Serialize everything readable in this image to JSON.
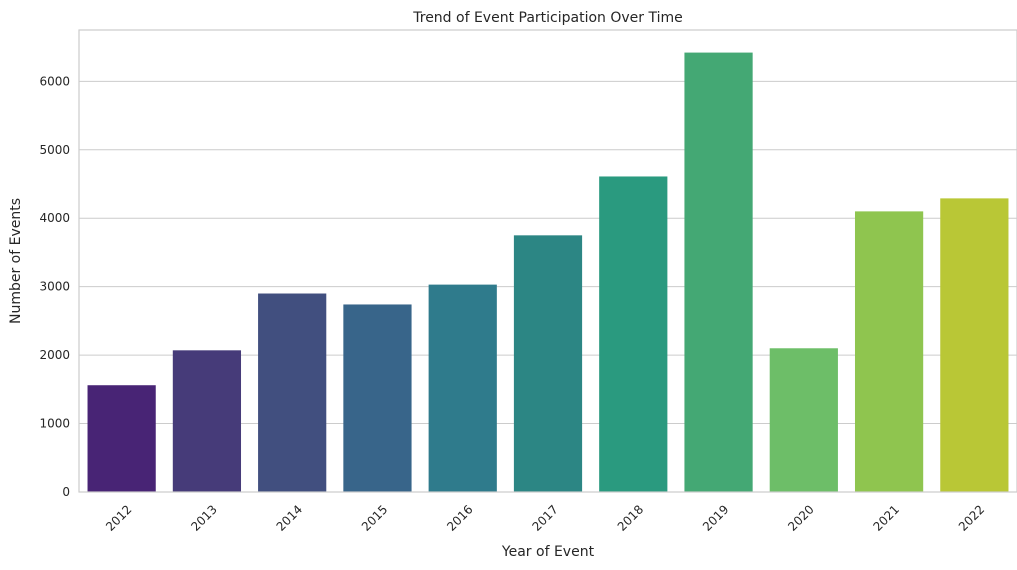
{
  "chart_data": {
    "type": "bar",
    "title": "Trend of Event Participation Over Time",
    "xlabel": "Year of Event",
    "ylabel": "Number of Events",
    "categories": [
      "2012",
      "2013",
      "2014",
      "2015",
      "2016",
      "2017",
      "2018",
      "2019",
      "2020",
      "2021",
      "2022"
    ],
    "values": [
      1560,
      2070,
      2900,
      2740,
      3030,
      3750,
      4610,
      6420,
      2100,
      4100,
      4290
    ],
    "colors": [
      "#482475",
      "#463b79",
      "#414f7f",
      "#38658a",
      "#2f7b8c",
      "#2c8684",
      "#2a9a7f",
      "#44a874",
      "#6dbe68",
      "#8fc54f",
      "#b9c736"
    ],
    "ylim": [
      0,
      6750
    ],
    "yticks": [
      0,
      1000,
      2000,
      3000,
      4000,
      5000,
      6000
    ],
    "grid": true,
    "xtick_rotation": 45
  }
}
